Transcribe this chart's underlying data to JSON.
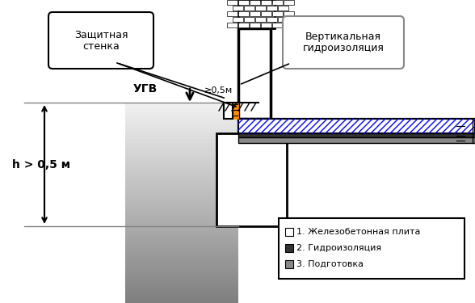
{
  "fig_width": 5.88,
  "fig_height": 3.75,
  "dpi": 100,
  "bg_color": "#ffffff",
  "label_zashchitnaya": "Защитная\nстенка",
  "label_vertikalnaya": "Вертикальная\nгидроизоляция",
  "label_ugv": "УГВ",
  "label_h": "h > 0,5 м",
  "label_05m": "≥0,5м",
  "legend_1": "1. Железобетонная плита",
  "legend_2": "2. Гидроизоляция",
  "legend_3": "3. Подготовка",
  "wall_color": "#000000",
  "orange_color": "#FF8C00",
  "blue_hatch_color": "#0000FF",
  "gray_soil_color": "#999999",
  "brick_color": "#000000"
}
